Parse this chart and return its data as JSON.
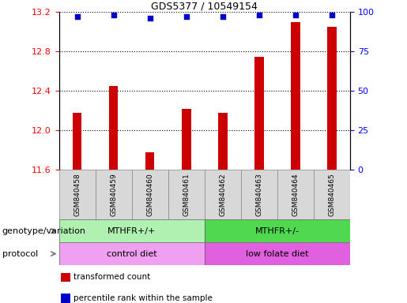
{
  "title": "GDS5377 / 10549154",
  "samples": [
    "GSM840458",
    "GSM840459",
    "GSM840460",
    "GSM840461",
    "GSM840462",
    "GSM840463",
    "GSM840464",
    "GSM840465"
  ],
  "red_values": [
    12.18,
    12.45,
    11.78,
    12.22,
    12.18,
    12.75,
    13.1,
    13.05
  ],
  "blue_values": [
    97,
    98,
    96,
    97,
    97,
    98,
    98,
    98
  ],
  "ylim_left": [
    11.6,
    13.2
  ],
  "ylim_right": [
    0,
    100
  ],
  "yticks_left": [
    11.6,
    12.0,
    12.4,
    12.8,
    13.2
  ],
  "yticks_right": [
    0,
    25,
    50,
    75,
    100
  ],
  "bar_color": "#cc0000",
  "dot_color": "#0000cc",
  "grid_color": "black",
  "genotype_groups": [
    {
      "label": "MTHFR+/+",
      "start": 0,
      "end": 4,
      "color": "#b0f0b0"
    },
    {
      "label": "MTHFR+/-",
      "start": 4,
      "end": 8,
      "color": "#50d850"
    }
  ],
  "protocol_groups": [
    {
      "label": "control diet",
      "start": 0,
      "end": 4,
      "color": "#f0a0f0"
    },
    {
      "label": "low folate diet",
      "start": 4,
      "end": 8,
      "color": "#e060e0"
    }
  ],
  "legend_items": [
    {
      "label": "transformed count",
      "color": "#cc0000"
    },
    {
      "label": "percentile rank within the sample",
      "color": "#0000cc"
    }
  ],
  "genotype_label": "genotype/variation",
  "protocol_label": "protocol"
}
